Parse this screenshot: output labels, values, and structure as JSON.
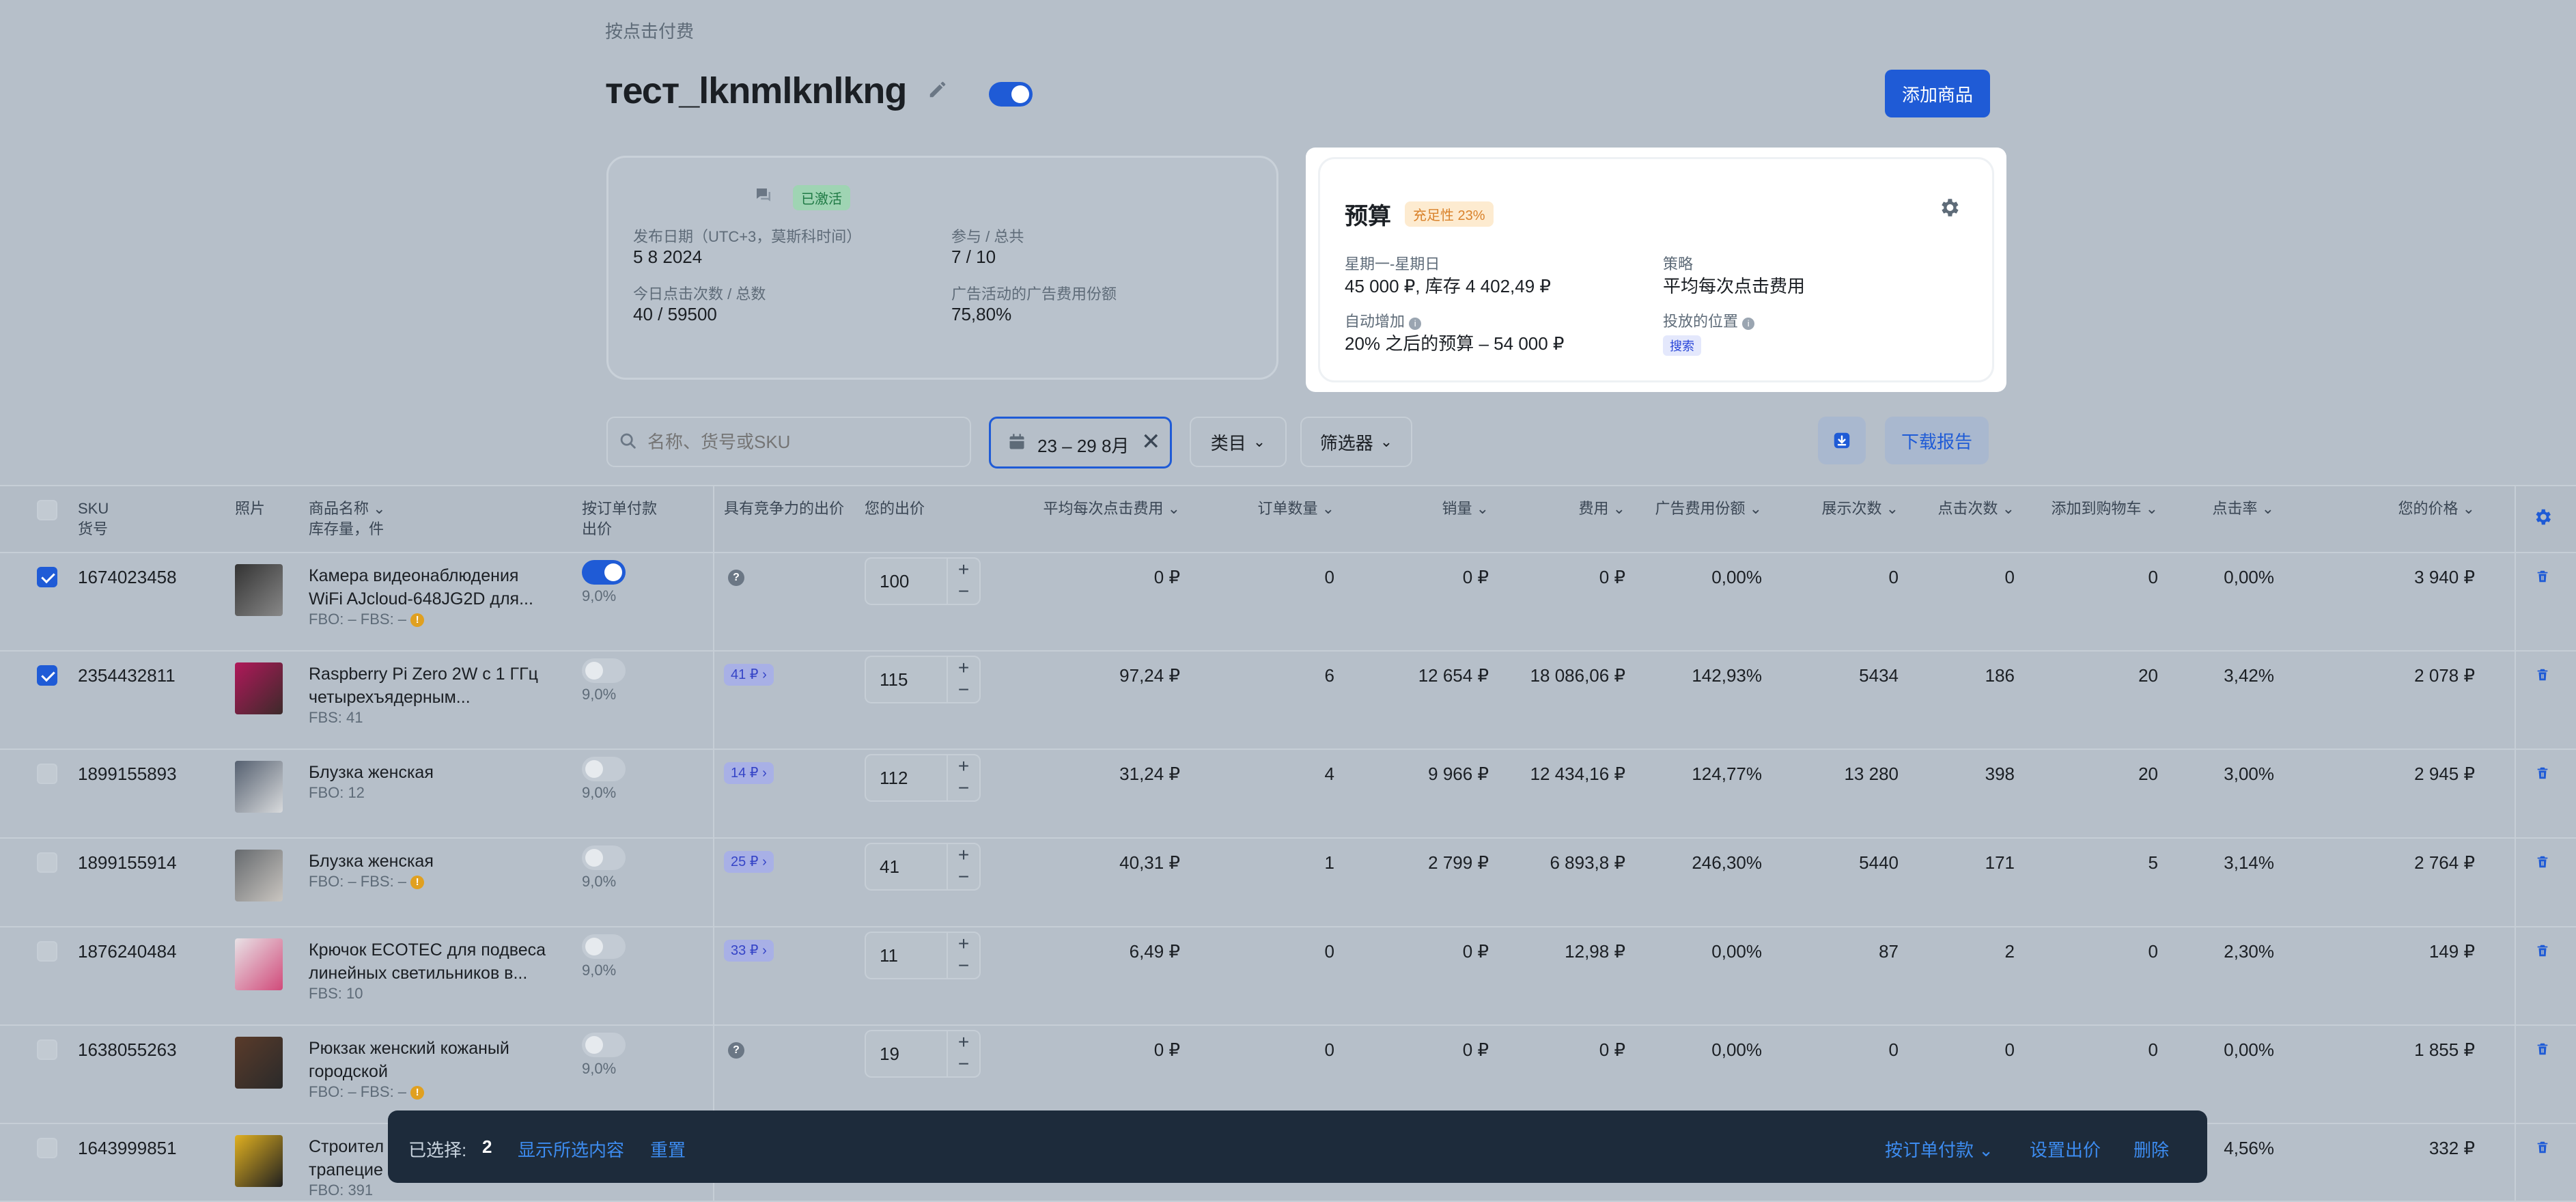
{
  "breadcrumb": "按点击付费",
  "campaign": {
    "title": "тест_lknmlknlkng",
    "add_button": "添加商品"
  },
  "info_card": {
    "status_badge": "已激活",
    "publish_label": "发布日期（UTC+3，莫斯科时间）",
    "publish_value": "5 8 2024",
    "participants_label": "参与 / 总共",
    "participants_value": "7 / 10",
    "clicks_label": "今日点击次数 / 总数",
    "clicks_value": "40 / 59500",
    "ad_share_label": "广告活动的广告费用份额",
    "ad_share_value": "75,80%"
  },
  "budget": {
    "title": "预算",
    "fill_badge": "充足性 23%",
    "schedule_label": "星期一-星期日",
    "schedule_value": "45 000 ₽, 库存 4 402,49 ₽",
    "strategy_label": "策略",
    "strategy_value": "平均每次点击费用",
    "auto_label": "自动增加",
    "auto_value": "20% 之后的预算 – 54 000 ₽",
    "placement_label": "投放的位置",
    "placement_value": "搜索"
  },
  "filters": {
    "search_placeholder": "名称、货号或SKU",
    "date_range": "23 – 29 8月",
    "category": "类目",
    "filter": "筛选器",
    "download_report": "下载报告"
  },
  "table": {
    "headers": {
      "sku": "SKU",
      "sku_sub": "货号",
      "photo": "照片",
      "name": "商品名称",
      "name_sub": "库存量，件",
      "cpo": "按订单付款",
      "cpo_sub": "出价",
      "competitive": "具有竞争力的出价",
      "your_bid": "您的出价",
      "avg_cpc": "平均每次点击费用",
      "orders": "订单数量",
      "sales": "销量",
      "cost": "费用",
      "ad_share": "广告费用份额",
      "impressions": "展示次数",
      "clicks": "点击次数",
      "cart": "添加到购物车",
      "ctr": "点击率",
      "your_price": "您的价格"
    },
    "rows": [
      {
        "sku": "1674023458",
        "name1": "Камера видеонаблюдения",
        "name2": "WiFi AJcloud-648JG2D для...",
        "stock": "FBO: –   FBS: –",
        "warn": true,
        "checked": true,
        "cpo_on": true,
        "pct": "9,0%",
        "comp": "",
        "bid": "100",
        "avg": "0 ₽",
        "orders": "0",
        "sales": "0 ₽",
        "cost": "0 ₽",
        "share": "0,00%",
        "imp": "0",
        "clicks": "0",
        "cart": "0",
        "ctr": "0,00%",
        "price": "3 940 ₽"
      },
      {
        "sku": "2354432811",
        "name1": "Raspberry Pi Zero 2W с 1 ГГц",
        "name2": "четырехъядерным...",
        "stock": "FBS: 41",
        "warn": false,
        "checked": true,
        "cpo_on": false,
        "pct": "9,0%",
        "comp": "41 ₽",
        "bid": "115",
        "avg": "97,24 ₽",
        "orders": "6",
        "sales": "12 654 ₽",
        "cost": "18 086,06 ₽",
        "share": "142,93%",
        "imp": "5434",
        "clicks": "186",
        "cart": "20",
        "ctr": "3,42%",
        "price": "2 078 ₽"
      },
      {
        "sku": "1899155893",
        "name1": "Блузка женская",
        "name2": "",
        "stock": "FBO: 12",
        "warn": false,
        "checked": false,
        "cpo_on": false,
        "pct": "9,0%",
        "comp": "14 ₽",
        "bid": "112",
        "avg": "31,24 ₽",
        "orders": "4",
        "sales": "9 966 ₽",
        "cost": "12 434,16 ₽",
        "share": "124,77%",
        "imp": "13 280",
        "clicks": "398",
        "cart": "20",
        "ctr": "3,00%",
        "price": "2 945 ₽"
      },
      {
        "sku": "1899155914",
        "name1": "Блузка женская",
        "name2": "",
        "stock": "FBO: –   FBS: –",
        "warn": true,
        "checked": false,
        "cpo_on": false,
        "pct": "9,0%",
        "comp": "25 ₽",
        "bid": "41",
        "avg": "40,31 ₽",
        "orders": "1",
        "sales": "2 799 ₽",
        "cost": "6 893,8 ₽",
        "share": "246,30%",
        "imp": "5440",
        "clicks": "171",
        "cart": "5",
        "ctr": "3,14%",
        "price": "2 764 ₽"
      },
      {
        "sku": "1876240484",
        "name1": "Крючок ECOTEC для подвеса",
        "name2": "линейных светильников в...",
        "stock": "FBS: 10",
        "warn": false,
        "checked": false,
        "cpo_on": false,
        "pct": "9,0%",
        "comp": "33 ₽",
        "bid": "11",
        "avg": "6,49 ₽",
        "orders": "0",
        "sales": "0 ₽",
        "cost": "12,98 ₽",
        "share": "0,00%",
        "imp": "87",
        "clicks": "2",
        "cart": "0",
        "ctr": "2,30%",
        "price": "149 ₽"
      },
      {
        "sku": "1638055263",
        "name1": "Рюкзак женский кожаный",
        "name2": "городской",
        "stock": "FBO: –   FBS: –",
        "warn": true,
        "checked": false,
        "cpo_on": false,
        "pct": "9,0%",
        "comp": "",
        "bid": "19",
        "avg": "0 ₽",
        "orders": "0",
        "sales": "0 ₽",
        "cost": "0 ₽",
        "share": "0,00%",
        "imp": "0",
        "clicks": "0",
        "cart": "0",
        "ctr": "0,00%",
        "price": "1 855 ₽"
      },
      {
        "sku": "1643999851",
        "name1": "Строител",
        "name2": "трапецие",
        "stock": "FBO: 391",
        "warn": false,
        "checked": false,
        "cpo_on": false,
        "pct": "",
        "comp": "",
        "bid": "",
        "avg": "",
        "orders": "",
        "sales": "",
        "cost": "",
        "share": "",
        "imp": "",
        "clicks": "",
        "cart": "",
        "ctr": "4,56%",
        "price": "332 ₽"
      }
    ]
  },
  "bottom_bar": {
    "selected_label": "已选择:",
    "selected_count": "2",
    "show_selected": "显示所选内容",
    "reset": "重置",
    "pay_per_order": "按订单付款",
    "set_bid": "设置出价",
    "delete": "删除"
  },
  "colors": {
    "accent": "#1f5bd6",
    "background": "#b6bfc9",
    "bar": "#1d2b3b"
  }
}
